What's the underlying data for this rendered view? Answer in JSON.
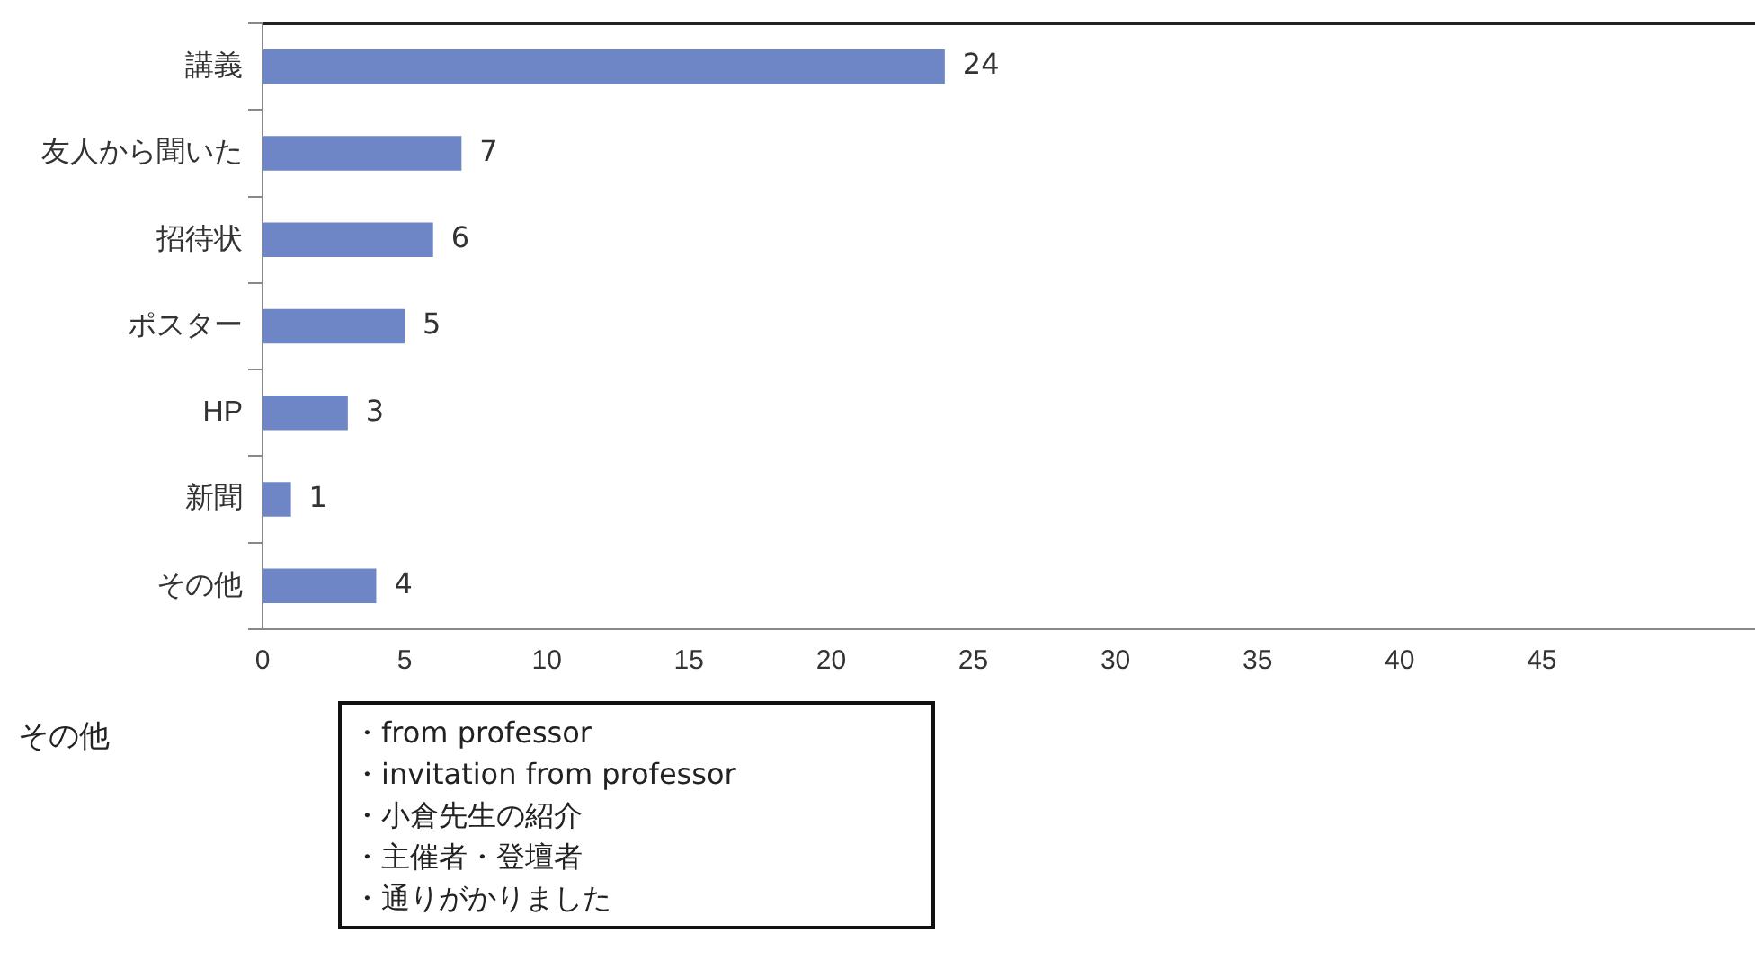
{
  "chart_data": {
    "type": "bar",
    "orientation": "horizontal",
    "categories": [
      "講義",
      "友人から聞いた",
      "招待状",
      "ポスター",
      "HP",
      "新聞",
      "その他"
    ],
    "values": [
      24,
      7,
      6,
      5,
      3,
      1,
      4
    ],
    "color": "#6e86c6",
    "xlim": [
      0,
      52.5
    ],
    "xticks": [
      0,
      5,
      10,
      15,
      20,
      25,
      30,
      35,
      40,
      45
    ],
    "grid": false,
    "data_labels": true,
    "annotations": [
      "その他",
      "・from professor",
      "・invitation from professor",
      "・小倉先生の紹介",
      "・主催者・登壇者",
      "・通りがかりました"
    ]
  }
}
